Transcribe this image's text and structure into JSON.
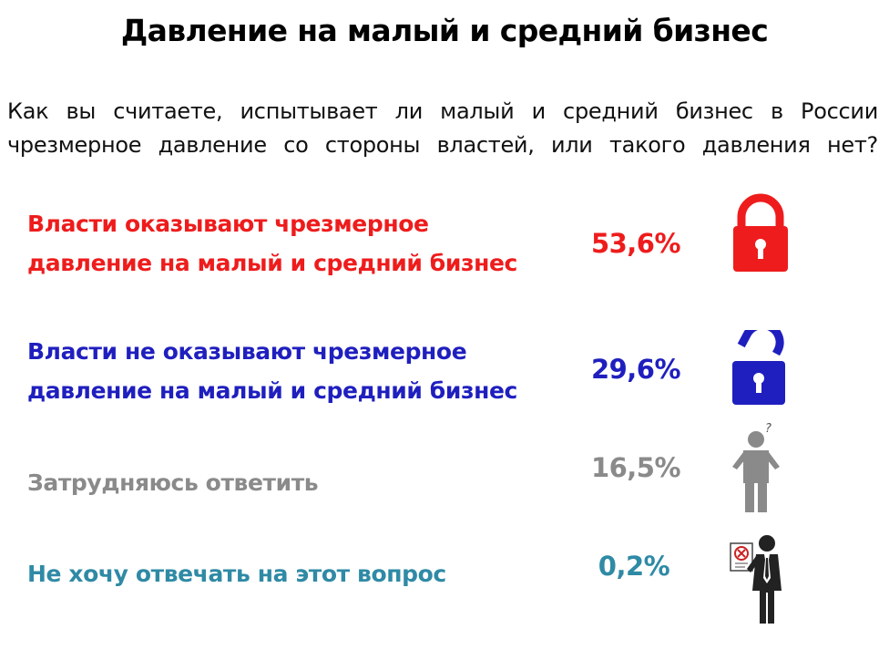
{
  "chart_data": {
    "type": "table",
    "title": "Давление на малый и средний бизнес",
    "subtitle": [
      "Как вы считаете, испытывает ли малый и средний бизнес в России",
      "чрезмерное давление со стороны властей, или такого давления нет?"
    ],
    "categories": [
      "Власти оказывают чрезмерное давление на малый и средний бизнес",
      "Власти не оказывают чрезмерное давление на малый и средний бизнес",
      "Затрудняюсь ответить",
      "Не хочу отвечать на этот вопрос"
    ],
    "values": [
      53.6,
      29.6,
      16.5,
      0.2
    ],
    "unit": "%",
    "rows": [
      {
        "label_lines": [
          "Власти оказывают чрезмерное",
          "давление на малый и средний бизнес"
        ],
        "value": 53.6,
        "value_label": "53,6%",
        "color": "#ee1c1c",
        "icon": "locked-padlock-icon"
      },
      {
        "label_lines": [
          "Власти не оказывают чрезмерное",
          "давление на малый и средний бизнес"
        ],
        "value": 29.6,
        "value_label": "29,6%",
        "color": "#1f1fbf",
        "icon": "unlocked-padlock-icon"
      },
      {
        "label_lines": [
          "Затрудняюсь ответить"
        ],
        "value": 16.5,
        "value_label": "16,5%",
        "color": "#8a8a8a",
        "icon": "shrugging-person-icon"
      },
      {
        "label_lines": [
          "Не хочу отвечать на этот вопрос"
        ],
        "value": 0.2,
        "value_label": "0,2%",
        "color": "#2f8aa5",
        "icon": "person-rejecting-document-icon"
      }
    ]
  }
}
